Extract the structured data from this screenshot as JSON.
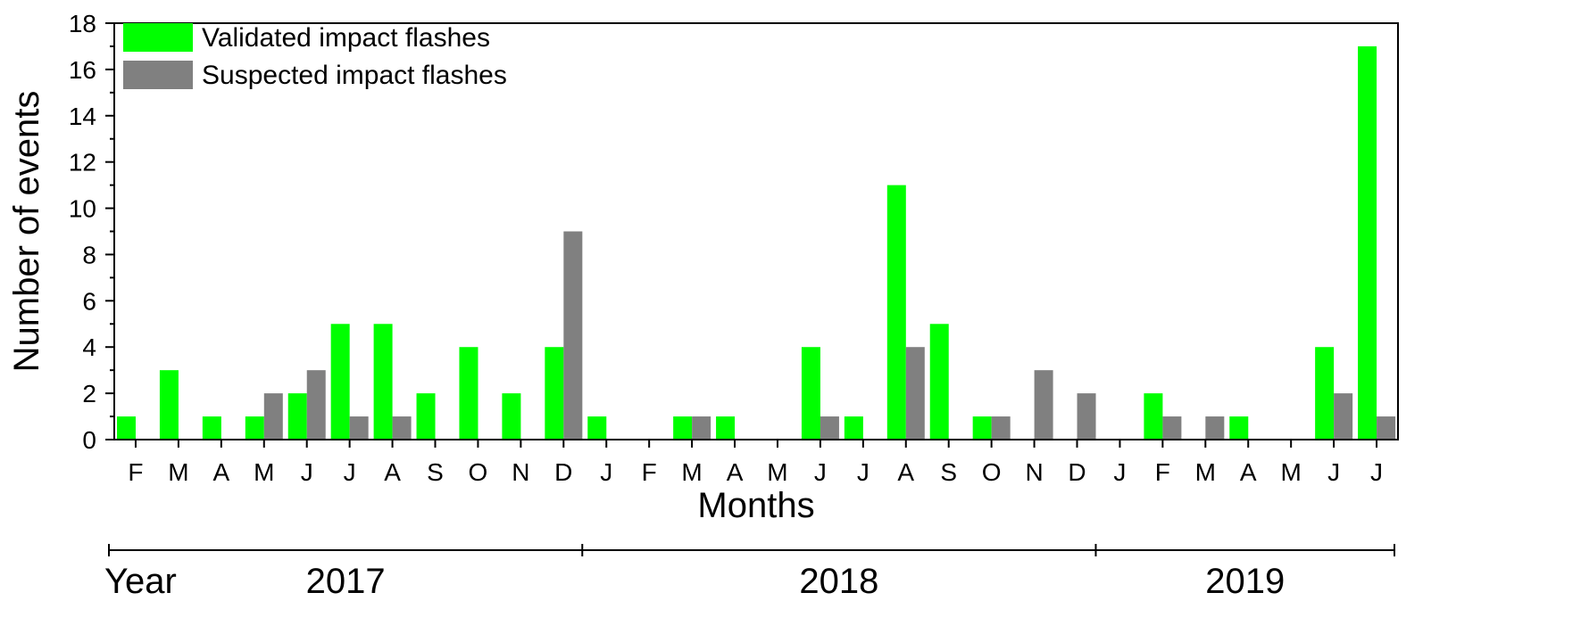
{
  "chart_data": {
    "type": "bar",
    "title": "",
    "xlabel": "Months",
    "ylabel": "Number of events",
    "ylim": [
      0,
      18
    ],
    "yticks": [
      0,
      2,
      4,
      6,
      8,
      10,
      12,
      14,
      16,
      18
    ],
    "categories": [
      "F",
      "M",
      "A",
      "M",
      "J",
      "J",
      "A",
      "S",
      "O",
      "N",
      "D",
      "J",
      "F",
      "M",
      "A",
      "M",
      "J",
      "J",
      "A",
      "S",
      "O",
      "N",
      "D",
      "J",
      "F",
      "M",
      "A",
      "M",
      "J",
      "J"
    ],
    "series": [
      {
        "name": "Validated impact flashes",
        "color": "#00ff00",
        "values": [
          1,
          3,
          1,
          1,
          2,
          5,
          5,
          2,
          4,
          2,
          4,
          1,
          0,
          1,
          1,
          0,
          4,
          1,
          11,
          5,
          1,
          0,
          0,
          0,
          2,
          0,
          1,
          0,
          4,
          17
        ]
      },
      {
        "name": "Suspected impact flashes",
        "color": "#808080",
        "values": [
          0,
          0,
          0,
          2,
          3,
          1,
          1,
          0,
          0,
          0,
          9,
          0,
          0,
          1,
          0,
          0,
          1,
          0,
          4,
          0,
          1,
          3,
          2,
          0,
          1,
          1,
          0,
          0,
          2,
          1
        ]
      }
    ],
    "legend_position": "top-left",
    "grid": false,
    "years": {
      "label": "Year",
      "groups": [
        {
          "name": "2017",
          "start": 0,
          "end": 10
        },
        {
          "name": "2018",
          "start": 11,
          "end": 22
        },
        {
          "name": "2019",
          "start": 23,
          "end": 29
        }
      ]
    }
  }
}
